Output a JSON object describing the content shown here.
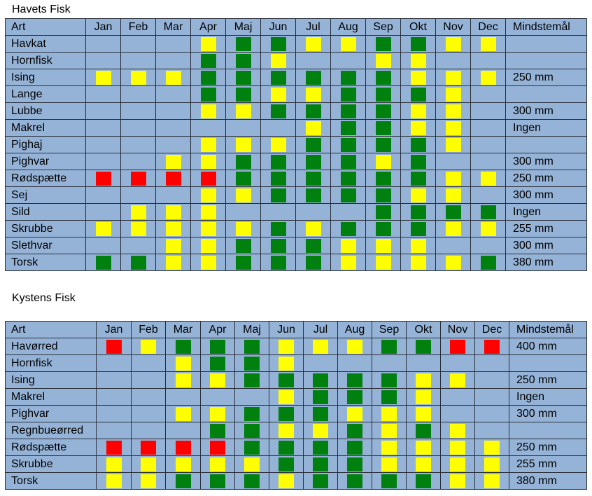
{
  "colors": {
    "table_bg": "#95b3d7",
    "border": "#2a2f3a",
    "yellow": "#ffff00",
    "green": "#00800f",
    "red": "#ff0000"
  },
  "legend_codes": {
    "Y": "yellow",
    "G": "green",
    "R": "red",
    "": "none"
  },
  "havets": {
    "title": "Havets Fisk",
    "headers": [
      "Art",
      "Jan",
      "Feb",
      "Mar",
      "Apr",
      "Maj",
      "Jun",
      "Jul",
      "Aug",
      "Sep",
      "Okt",
      "Nov",
      "Dec",
      "Mindstemål"
    ],
    "rows": [
      {
        "name": "Havkat",
        "months": [
          "",
          "",
          "",
          "Y",
          "G",
          "G",
          "Y",
          "Y",
          "G",
          "G",
          "Y",
          "Y"
        ],
        "min": ""
      },
      {
        "name": "Hornfisk",
        "months": [
          "",
          "",
          "",
          "G",
          "G",
          "Y",
          "",
          "",
          "Y",
          "Y",
          "",
          ""
        ],
        "min": ""
      },
      {
        "name": "Ising",
        "months": [
          "Y",
          "Y",
          "Y",
          "G",
          "G",
          "G",
          "G",
          "G",
          "G",
          "Y",
          "Y",
          "Y"
        ],
        "min": "250 mm"
      },
      {
        "name": "Lange",
        "months": [
          "",
          "",
          "",
          "G",
          "G",
          "Y",
          "Y",
          "G",
          "G",
          "G",
          "Y",
          ""
        ],
        "min": ""
      },
      {
        "name": "Lubbe",
        "months": [
          "",
          "",
          "",
          "Y",
          "Y",
          "G",
          "G",
          "G",
          "G",
          "Y",
          "Y",
          ""
        ],
        "min": "300 mm"
      },
      {
        "name": "Makrel",
        "months": [
          "",
          "",
          "",
          "",
          "",
          "",
          "Y",
          "G",
          "G",
          "Y",
          "Y",
          ""
        ],
        "min": "Ingen"
      },
      {
        "name": "Pighaj",
        "months": [
          "",
          "",
          "",
          "Y",
          "Y",
          "Y",
          "G",
          "G",
          "G",
          "G",
          "Y",
          ""
        ],
        "min": ""
      },
      {
        "name": "Pighvar",
        "months": [
          "",
          "",
          "Y",
          "Y",
          "G",
          "G",
          "G",
          "G",
          "Y",
          "G",
          "",
          ""
        ],
        "min": "300 mm"
      },
      {
        "name": "Rødspætte",
        "months": [
          "R",
          "R",
          "R",
          "R",
          "G",
          "G",
          "G",
          "G",
          "G",
          "G",
          "Y",
          "Y"
        ],
        "min": "250 mm"
      },
      {
        "name": "Sej",
        "months": [
          "",
          "",
          "",
          "Y",
          "Y",
          "G",
          "G",
          "G",
          "G",
          "Y",
          "Y",
          ""
        ],
        "min": "300 mm"
      },
      {
        "name": "Sild",
        "months": [
          "",
          "Y",
          "Y",
          "Y",
          "",
          "",
          "",
          "",
          "G",
          "G",
          "G",
          "G"
        ],
        "min": "Ingen"
      },
      {
        "name": "Skrubbe",
        "months": [
          "Y",
          "Y",
          "Y",
          "Y",
          "Y",
          "G",
          "Y",
          "G",
          "G",
          "G",
          "Y",
          "Y"
        ],
        "min": "255 mm"
      },
      {
        "name": "Slethvar",
        "months": [
          "",
          "",
          "Y",
          "Y",
          "G",
          "G",
          "G",
          "Y",
          "Y",
          "Y",
          "",
          ""
        ],
        "min": "300 mm"
      },
      {
        "name": "Torsk",
        "months": [
          "G",
          "G",
          "Y",
          "Y",
          "G",
          "G",
          "G",
          "Y",
          "Y",
          "Y",
          "Y",
          "G"
        ],
        "min": "380 mm"
      }
    ]
  },
  "kystens": {
    "title": "Kystens Fisk",
    "headers": [
      "Art",
      "Jan",
      "Feb",
      "Mar",
      "Apr",
      "Maj",
      "Jun",
      "Jul",
      "Aug",
      "Sep",
      "Okt",
      "Nov",
      "Dec",
      "Mindstemål"
    ],
    "rows": [
      {
        "name": "Havørred",
        "months": [
          "R",
          "Y",
          "G",
          "G",
          "G",
          "Y",
          "Y",
          "Y",
          "G",
          "G",
          "R",
          "R"
        ],
        "min": "400 mm"
      },
      {
        "name": "Hornfisk",
        "months": [
          "",
          "",
          "Y",
          "G",
          "G",
          "Y",
          "",
          "",
          "",
          "",
          "",
          ""
        ],
        "min": ""
      },
      {
        "name": "Ising",
        "months": [
          "",
          "",
          "Y",
          "Y",
          "G",
          "G",
          "G",
          "G",
          "G",
          "Y",
          "Y",
          ""
        ],
        "min": "250 mm"
      },
      {
        "name": "Makrel",
        "months": [
          "",
          "",
          "",
          "",
          "",
          "Y",
          "G",
          "G",
          "G",
          "Y",
          "",
          ""
        ],
        "min": "Ingen"
      },
      {
        "name": "Pighvar",
        "months": [
          "",
          "",
          "Y",
          "Y",
          "G",
          "G",
          "G",
          "Y",
          "Y",
          "Y",
          "",
          ""
        ],
        "min": "300 mm"
      },
      {
        "name": "Regnbueørred",
        "months": [
          "",
          "",
          "",
          "G",
          "G",
          "Y",
          "Y",
          "G",
          "Y",
          "G",
          "Y",
          ""
        ],
        "min": ""
      },
      {
        "name": "Rødspætte",
        "months": [
          "R",
          "R",
          "R",
          "R",
          "G",
          "G",
          "G",
          "G",
          "Y",
          "Y",
          "Y",
          "Y"
        ],
        "min": "250 mm"
      },
      {
        "name": "Skrubbe",
        "months": [
          "Y",
          "Y",
          "Y",
          "Y",
          "Y",
          "G",
          "G",
          "G",
          "Y",
          "Y",
          "Y",
          "Y"
        ],
        "min": "255 mm"
      },
      {
        "name": "Torsk",
        "months": [
          "Y",
          "Y",
          "G",
          "G",
          "G",
          "Y",
          "G",
          "G",
          "G",
          "G",
          "Y",
          "Y"
        ],
        "min": "380 mm"
      }
    ]
  }
}
